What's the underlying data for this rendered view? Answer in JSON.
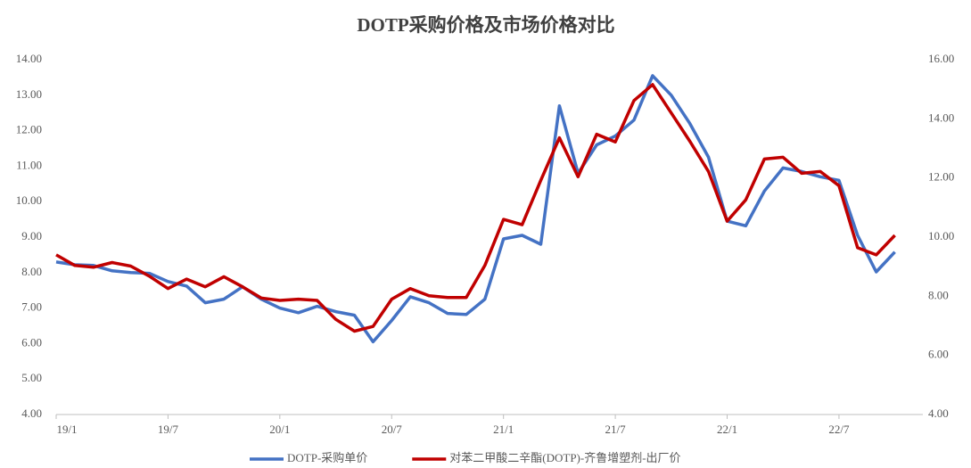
{
  "chart_data": {
    "type": "line",
    "title": "DOTP采购价格及市场价格对比",
    "categories": [
      "19/1",
      null,
      null,
      null,
      null,
      null,
      "19/7",
      null,
      null,
      null,
      null,
      null,
      "20/1",
      null,
      null,
      null,
      null,
      null,
      "20/7",
      null,
      null,
      null,
      null,
      null,
      "21/1",
      null,
      null,
      null,
      null,
      null,
      "21/7",
      null,
      null,
      null,
      null,
      null,
      "22/1",
      null,
      null,
      null,
      null,
      null,
      "22/7",
      null,
      null,
      null
    ],
    "series": [
      {
        "name": "DOTP-采购单价",
        "color": "#4472c4",
        "axis": "y",
        "values": [
          8.3,
          8.22,
          8.2,
          8.05,
          8.0,
          7.98,
          7.75,
          7.62,
          7.15,
          7.25,
          7.6,
          7.25,
          7.0,
          6.87,
          7.05,
          6.9,
          6.8,
          6.05,
          6.65,
          7.32,
          7.15,
          6.85,
          6.82,
          7.25,
          8.95,
          9.05,
          8.8,
          12.7,
          10.8,
          11.6,
          11.85,
          12.3,
          13.55,
          13.0,
          12.2,
          11.25,
          9.45,
          9.32,
          10.3,
          10.95,
          10.85,
          10.7,
          10.6,
          9.05,
          8.02,
          8.58
        ]
      },
      {
        "name": "对苯二甲酸二辛酯(DOTP)-齐鲁增塑剂-出厂价",
        "color": "#c00000",
        "axis": "y2",
        "values": [
          9.4,
          9.04,
          8.98,
          9.14,
          9.02,
          8.68,
          8.26,
          8.58,
          8.32,
          8.66,
          8.32,
          7.94,
          7.86,
          7.9,
          7.86,
          7.22,
          6.82,
          6.98,
          7.9,
          8.26,
          8.02,
          7.96,
          7.96,
          9.04,
          10.6,
          10.42,
          11.92,
          13.36,
          12.04,
          13.48,
          13.22,
          14.62,
          15.16,
          14.2,
          13.24,
          12.22,
          10.54,
          11.26,
          12.64,
          12.7,
          12.16,
          12.22,
          11.74,
          9.64,
          9.4,
          10.06
        ]
      }
    ],
    "ylim": [
      4,
      14
    ],
    "yticks": [
      {
        "value": 4,
        "label": "4.00"
      },
      {
        "value": 5,
        "label": "5.00"
      },
      {
        "value": 6,
        "label": "6.00"
      },
      {
        "value": 7,
        "label": "7.00"
      },
      {
        "value": 8,
        "label": "8.00"
      },
      {
        "value": 9,
        "label": "9.00"
      },
      {
        "value": 10,
        "label": "10.00"
      },
      {
        "value": 11,
        "label": "11.00"
      },
      {
        "value": 12,
        "label": "12.00"
      },
      {
        "value": 13,
        "label": "13.00"
      },
      {
        "value": 14,
        "label": "14.00"
      }
    ],
    "y2lim": [
      4,
      16
    ],
    "y2ticks": [
      {
        "value": 4,
        "label": "4.00"
      },
      {
        "value": 6,
        "label": "6.00"
      },
      {
        "value": 8,
        "label": "8.00"
      },
      {
        "value": 10,
        "label": "10.00"
      },
      {
        "value": 12,
        "label": "12.00"
      },
      {
        "value": 14,
        "label": "14.00"
      },
      {
        "value": 16,
        "label": "16.00"
      }
    ],
    "grid": false,
    "legend": "bottom"
  }
}
